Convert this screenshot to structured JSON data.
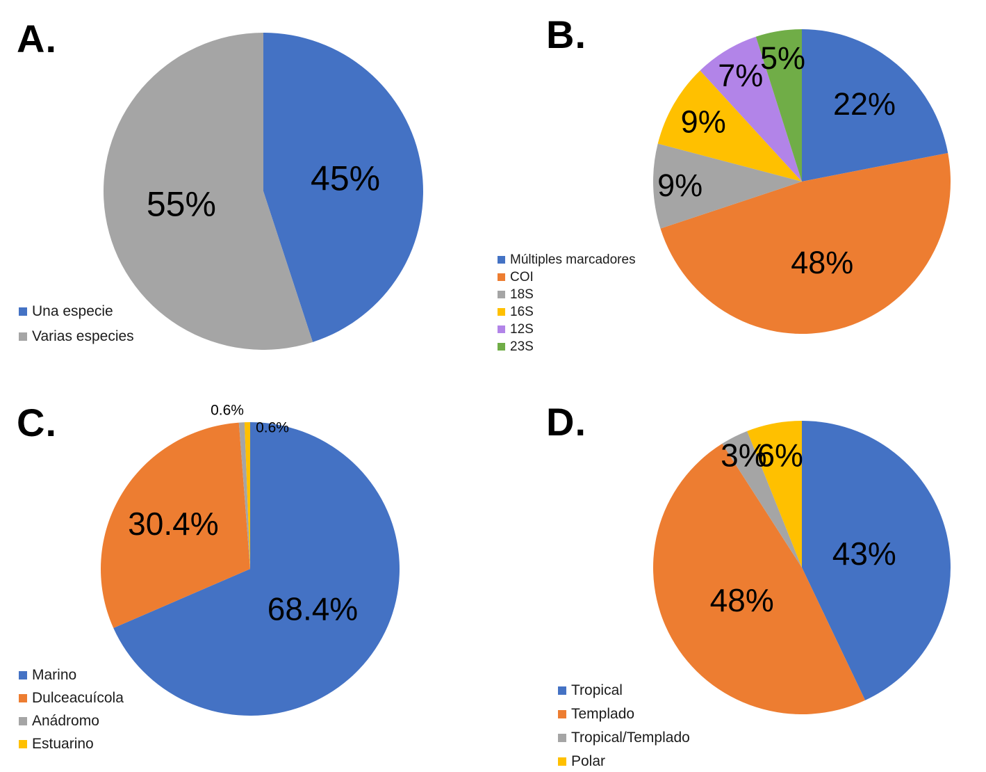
{
  "figure": {
    "background": "#ffffff",
    "description": "Four pie charts labeled A-D"
  },
  "palette": {
    "blue": "#4472C4",
    "orange": "#ED7D31",
    "gray": "#A5A5A5",
    "yellow": "#FFC000",
    "purple": "#B284E8",
    "green": "#70AD47"
  },
  "chart_data": [
    {
      "panel": "A.",
      "type": "pie",
      "direction": "clockwise",
      "start_angle_deg": 0,
      "legend_position": "bottom-left",
      "slices": [
        {
          "label": "Una especie",
          "value": 45,
          "display": "45%",
          "color": "#4472C4"
        },
        {
          "label": "Varias especies",
          "value": 55,
          "display": "55%",
          "color": "#A5A5A5"
        }
      ]
    },
    {
      "panel": "B.",
      "type": "pie",
      "direction": "clockwise",
      "start_angle_deg": 0,
      "legend_position": "left",
      "slices": [
        {
          "label": "Múltiples marcadores",
          "value": 22,
          "display": "22%",
          "color": "#4472C4"
        },
        {
          "label": "COI",
          "value": 48,
          "display": "48%",
          "color": "#ED7D31"
        },
        {
          "label": "18S",
          "value": 9,
          "display": "9%",
          "color": "#A5A5A5"
        },
        {
          "label": "16S",
          "value": 9,
          "display": "9%",
          "color": "#FFC000"
        },
        {
          "label": "12S",
          "value": 7,
          "display": "7%",
          "color": "#B284E8"
        },
        {
          "label": "23S",
          "value": 5,
          "display": "5%",
          "color": "#70AD47"
        }
      ]
    },
    {
      "panel": "C.",
      "type": "pie",
      "direction": "clockwise",
      "start_angle_deg": 0,
      "legend_position": "bottom-left",
      "slices": [
        {
          "label": "Marino",
          "value": 68.4,
          "display": "68.4%",
          "color": "#4472C4"
        },
        {
          "label": "Dulceacuícola",
          "value": 30.4,
          "display": "30.4%",
          "color": "#ED7D31"
        },
        {
          "label": "Anádromo",
          "value": 0.6,
          "display": "0.6%",
          "color": "#A5A5A5"
        },
        {
          "label": "Estuarino",
          "value": 0.6,
          "display": "0.6%",
          "color": "#FFC000"
        }
      ]
    },
    {
      "panel": "D.",
      "type": "pie",
      "direction": "clockwise",
      "start_angle_deg": 0,
      "legend_position": "bottom-left",
      "slices": [
        {
          "label": "Tropical",
          "value": 43,
          "display": "43%",
          "color": "#4472C4"
        },
        {
          "label": "Templado",
          "value": 48,
          "display": "48%",
          "color": "#ED7D31"
        },
        {
          "label": "Tropical/Templado",
          "value": 3,
          "display": "3%",
          "color": "#A5A5A5"
        },
        {
          "label": "Polar",
          "value": 6,
          "display": "6%",
          "color": "#FFC000"
        }
      ]
    }
  ]
}
